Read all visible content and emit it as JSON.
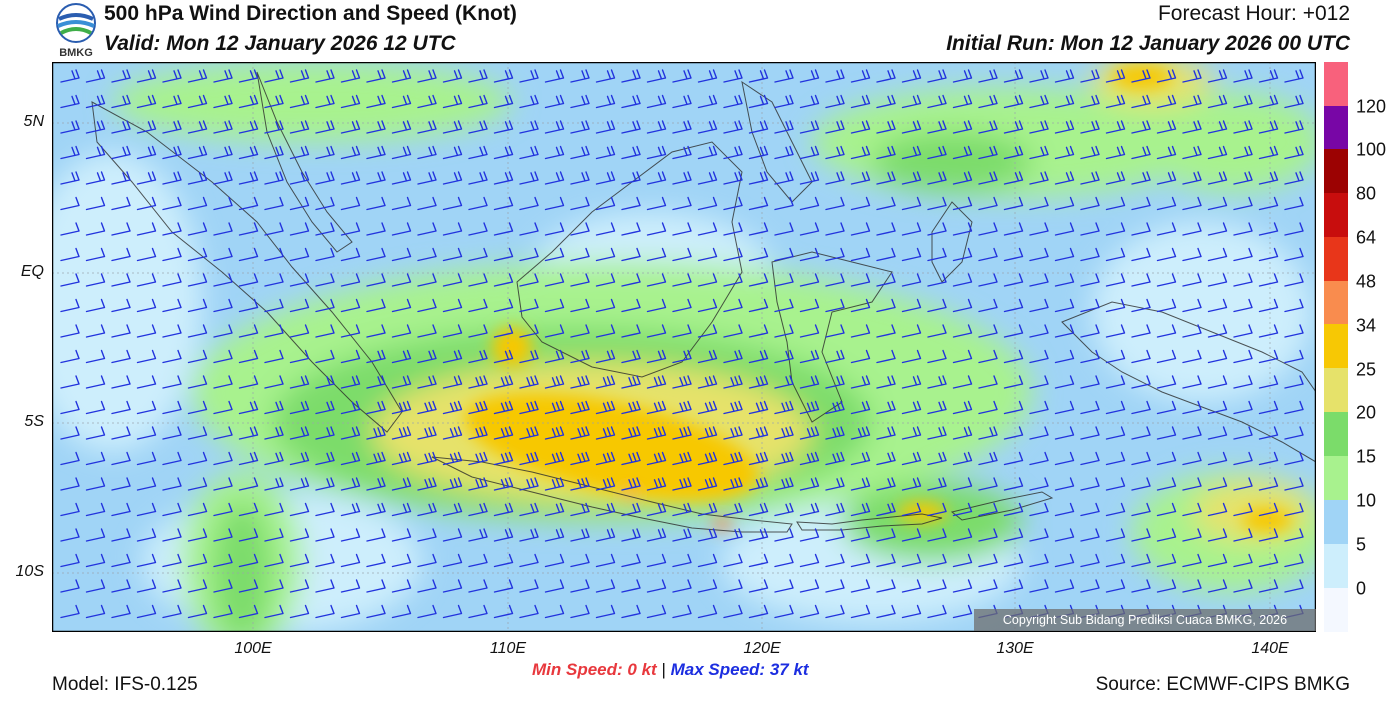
{
  "header": {
    "title": "500 hPa Wind Direction and Speed (Knot)",
    "valid": "Valid: Mon 12 January 2026 12 UTC",
    "forecast_hour": "Forecast Hour: +012",
    "initial_run": "Initial Run: Mon 12 January 2026 00 UTC",
    "logo_text": "BMKG"
  },
  "map": {
    "lat_labels": [
      "5N",
      "EQ",
      "5S",
      "10S"
    ],
    "lon_labels": [
      "100E",
      "110E",
      "120E",
      "130E",
      "140E"
    ],
    "copyright": "Copyright Sub Bidang Prediksi Cuaca BMKG, 2026"
  },
  "colorbar": {
    "labels": [
      "120",
      "100",
      "80",
      "64",
      "48",
      "34",
      "25",
      "20",
      "15",
      "10",
      "5",
      "0"
    ],
    "colors": [
      "#f4f8ff",
      "#cdeefc",
      "#a0d4f6",
      "#a8f28e",
      "#7bdc6a",
      "#e6e26a",
      "#f7c804",
      "#f98c4e",
      "#e8361a",
      "#c80d0d",
      "#9c0202",
      "#7806a6",
      "#f8617c"
    ]
  },
  "footer": {
    "model": "Model: IFS-0.125",
    "source": "Source: ECMWF-CIPS BMKG",
    "min_label": "Min Speed:",
    "min_value": "0 kt",
    "separator": "|",
    "max_label": "Max Speed:",
    "max_value": "37 kt"
  }
}
